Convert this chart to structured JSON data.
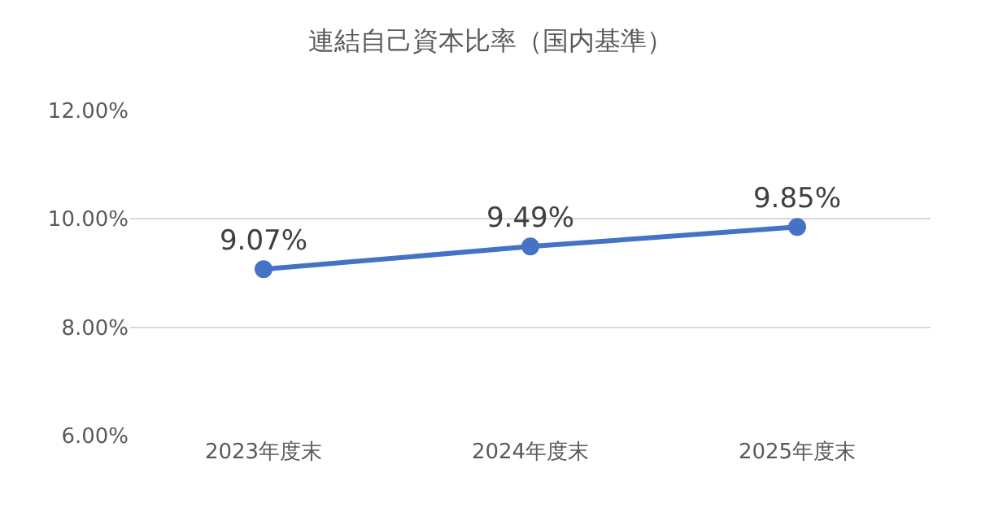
{
  "chart_data": {
    "type": "line",
    "title": "連結自己資本比率（国内基準）",
    "categories": [
      "2023年度末",
      "2024年度末",
      "2025年度末"
    ],
    "series": [
      {
        "color": "#4472c4",
        "values": [
          9.07,
          9.49,
          9.85
        ],
        "value_labels": [
          "9.07%",
          "9.49%",
          "9.85%"
        ]
      }
    ],
    "ylim": [
      6,
      12
    ],
    "yticks": [
      {
        "value": 6,
        "label": "6.00%"
      },
      {
        "value": 8,
        "label": "8.00%"
      },
      {
        "value": 10,
        "label": "10.00%"
      },
      {
        "value": 12,
        "label": "12.00%"
      }
    ],
    "grid": "y",
    "marker": "circle",
    "line_style": "solid"
  }
}
